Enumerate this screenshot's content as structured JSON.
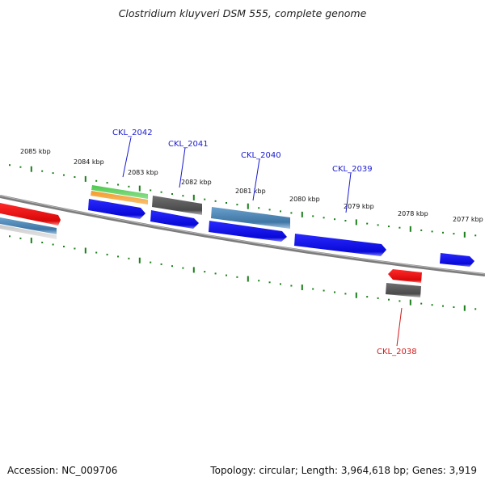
{
  "title": "Clostridium kluyveri DSM 555, complete genome",
  "footer": {
    "accession": "Accession: NC_009706",
    "summary": "Topology: circular; Length: 3,964,618 bp; Genes: 3,919"
  },
  "colors": {
    "backbone": "#808080",
    "tick": "#1a7f1a",
    "label_blue": "#1a1ad0",
    "label_red": "#d01a1a",
    "blue": "#1010f0",
    "red": "#f01010",
    "steel": "#4f86b5",
    "dark_gray": "#606060",
    "light_gray": "#b0b0b0",
    "green": "#3ab53a",
    "orange": "#f09020"
  },
  "kbp_labels": [
    "2085 kbp",
    "2084 kbp",
    "2083 kbp",
    "2082 kbp",
    "2081 kbp",
    "2080 kbp",
    "2079 kbp",
    "2078 kbp",
    "2077 kbp"
  ],
  "gene_labels": [
    {
      "id": "CKL_2042",
      "color": "blue"
    },
    {
      "id": "CKL_2041",
      "color": "blue"
    },
    {
      "id": "CKL_2040",
      "color": "blue"
    },
    {
      "id": "CKL_2039",
      "color": "blue"
    },
    {
      "id": "CKL_2038",
      "color": "red"
    }
  ]
}
